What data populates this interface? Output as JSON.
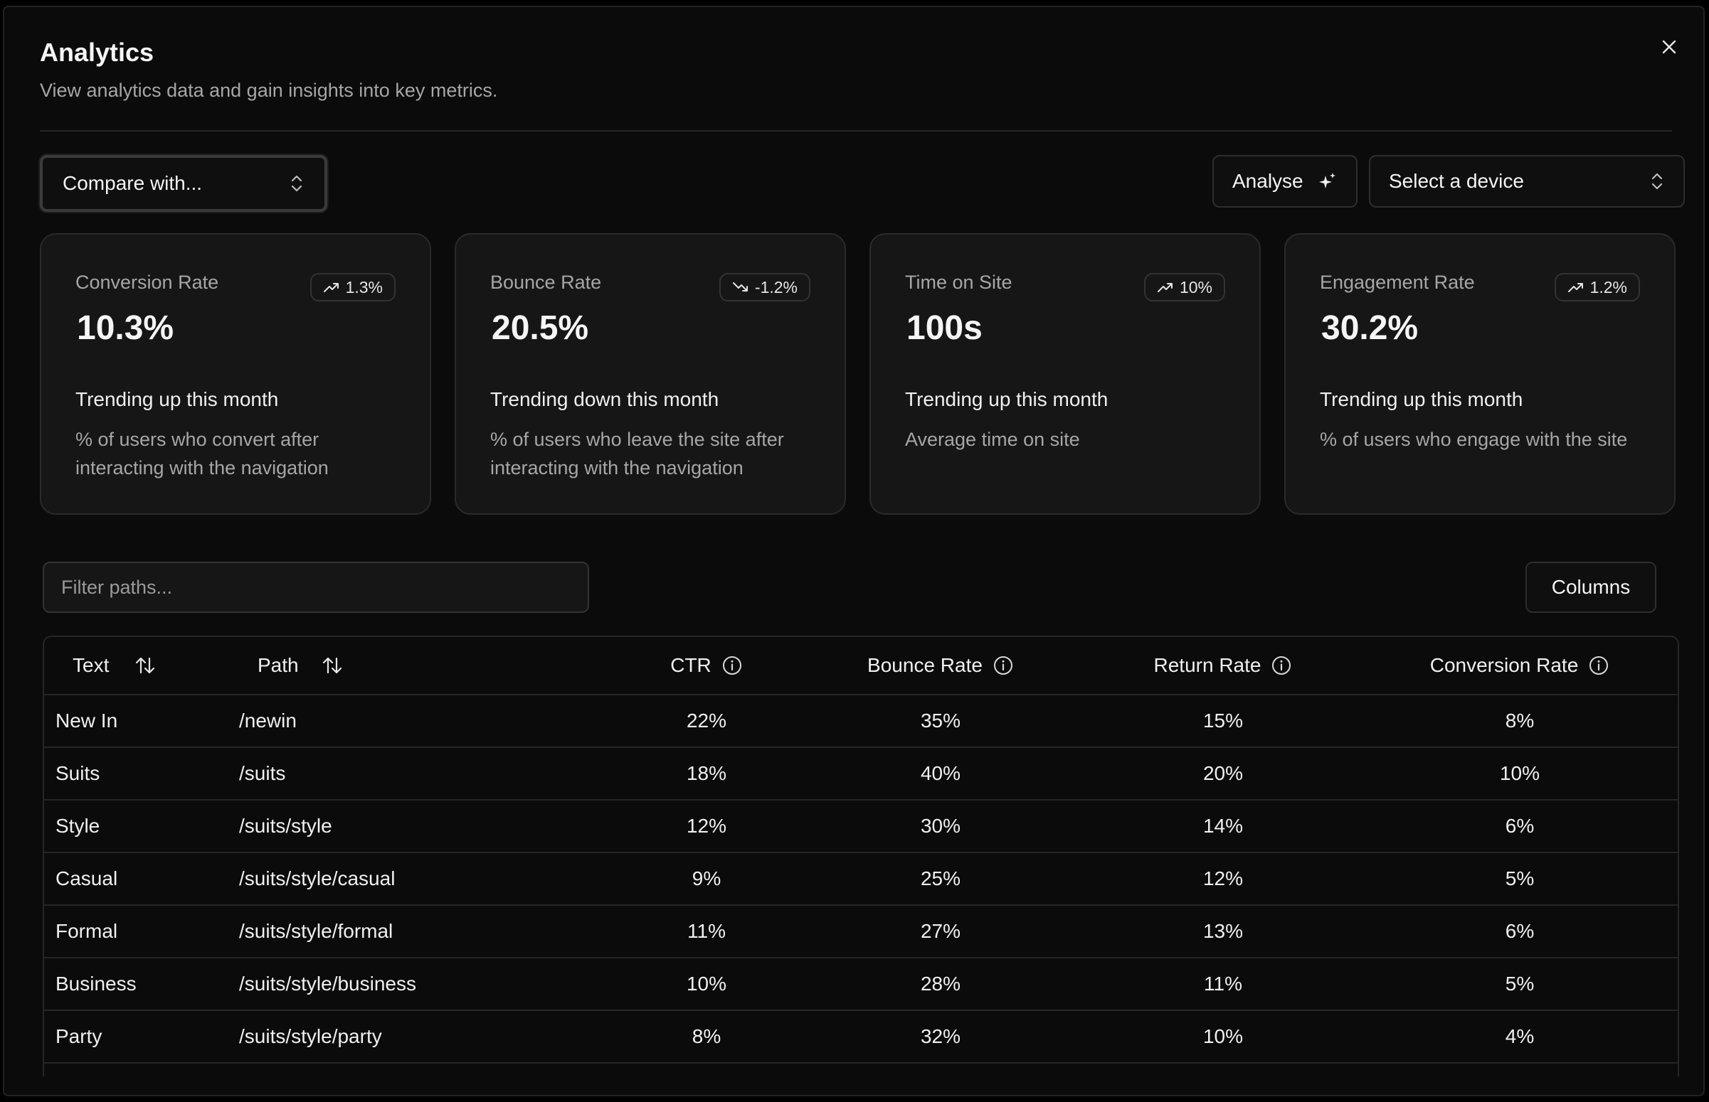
{
  "header": {
    "title": "Analytics",
    "subtitle": "View analytics data and gain insights into key metrics."
  },
  "toolbar": {
    "compare_label": "Compare with...",
    "analyse_label": "Analyse",
    "device_label": "Select a device"
  },
  "cards": [
    {
      "label": "Conversion Rate",
      "badge": "1.3%",
      "badge_direction": "up",
      "value": "10.3%",
      "trend": "Trending up this month",
      "description": "% of users who convert after interacting with the navigation"
    },
    {
      "label": "Bounce Rate",
      "badge": "-1.2%",
      "badge_direction": "down",
      "value": "20.5%",
      "trend": "Trending down this month",
      "description": "% of users who leave the site after interacting with the navigation"
    },
    {
      "label": "Time on Site",
      "badge": "10%",
      "badge_direction": "up",
      "value": "100s",
      "trend": "Trending up this month",
      "description": "Average time on site"
    },
    {
      "label": "Engagement Rate",
      "badge": "1.2%",
      "badge_direction": "up",
      "value": "30.2%",
      "trend": "Trending up this month",
      "description": "% of users who engage with the site"
    }
  ],
  "filter": {
    "placeholder": "Filter paths...",
    "value": ""
  },
  "columns_label": "Columns",
  "table": {
    "headers": [
      "Text",
      "Path",
      "CTR",
      "Bounce Rate",
      "Return Rate",
      "Conversion Rate"
    ],
    "rows": [
      [
        "New In",
        "/newin",
        "22%",
        "35%",
        "15%",
        "8%"
      ],
      [
        "Suits",
        "/suits",
        "18%",
        "40%",
        "20%",
        "10%"
      ],
      [
        "Style",
        "/suits/style",
        "12%",
        "30%",
        "14%",
        "6%"
      ],
      [
        "Casual",
        "/suits/style/casual",
        "9%",
        "25%",
        "12%",
        "5%"
      ],
      [
        "Formal",
        "/suits/style/formal",
        "11%",
        "27%",
        "13%",
        "6%"
      ],
      [
        "Business",
        "/suits/style/business",
        "10%",
        "28%",
        "11%",
        "5%"
      ],
      [
        "Party",
        "/suits/style/party",
        "8%",
        "32%",
        "10%",
        "4%"
      ]
    ]
  },
  "icons": {
    "close": "close-icon",
    "compare_chevrons": "chevron-up-down-icon",
    "analyse": "sparkles-icon",
    "device_chevrons": "chevron-up-down-icon",
    "trend_up": "trending-up-icon",
    "trend_down": "trending-down-icon",
    "sort": "sort-arrows-icon",
    "info": "info-icon"
  },
  "colors": {
    "background": "#0b0b0b",
    "card": "#161616",
    "border": "#2a2a2a",
    "text": "#f5f5f5",
    "muted": "#a6a6a6"
  }
}
